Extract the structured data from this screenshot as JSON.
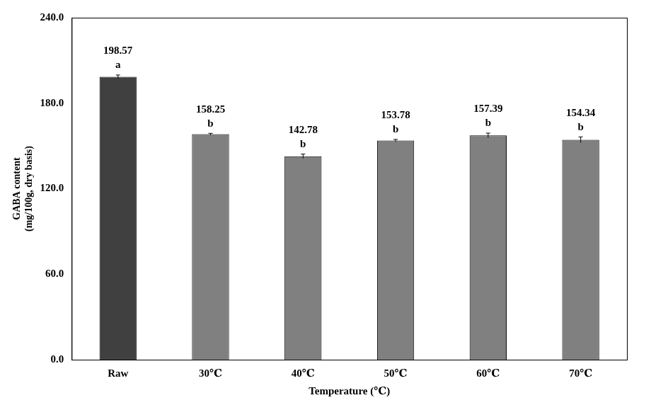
{
  "chart_data": {
    "type": "bar",
    "x_label": "Temperature (℃)",
    "y_label": [
      "GABA content",
      "(mg/100g, dry basis)"
    ],
    "categories": [
      "Raw",
      "30℃",
      "40℃",
      "50℃",
      "60℃",
      "70℃"
    ],
    "values": [
      198.57,
      158.25,
      142.78,
      153.78,
      157.39,
      154.34
    ],
    "errors": [
      1.2,
      0.6,
      1.5,
      0.8,
      1.6,
      2.0
    ],
    "annotations": [
      "a",
      "b",
      "b",
      "b",
      "b",
      "b"
    ],
    "colors": [
      "#404040",
      "#808080",
      "#808080",
      "#808080",
      "#808080",
      "#808080"
    ],
    "ylim": [
      0,
      240
    ],
    "yticks": [
      {
        "value": 0,
        "label": "0.0"
      },
      {
        "value": 60,
        "label": "60.0"
      },
      {
        "value": 120,
        "label": "120.0"
      },
      {
        "value": 180,
        "label": "180.0"
      },
      {
        "value": 240,
        "label": "240.0"
      }
    ],
    "grid": false,
    "data_labels": true
  }
}
